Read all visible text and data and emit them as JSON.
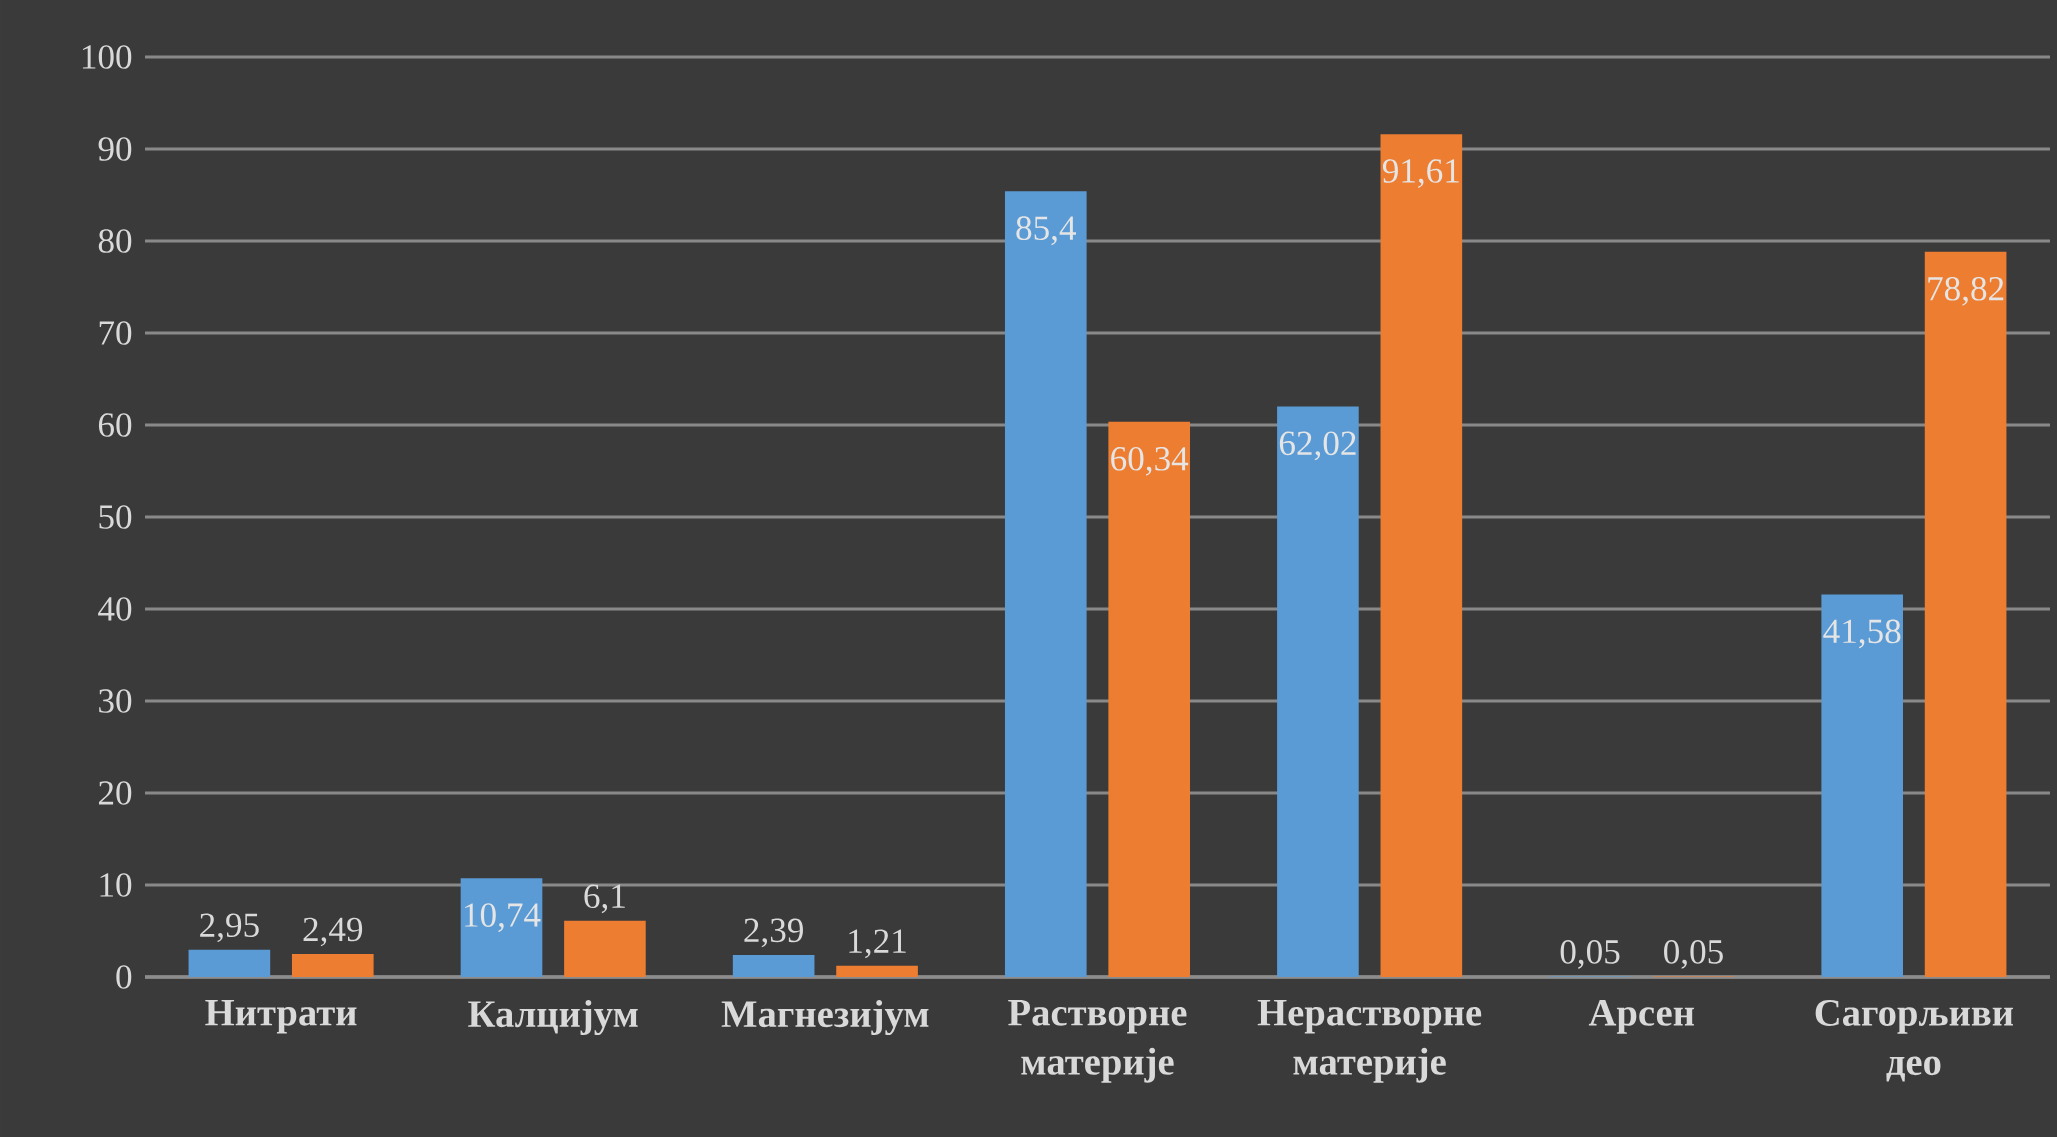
{
  "chart_data": {
    "type": "bar",
    "categories": [
      "Нитрати",
      "Калцијум",
      "Магнезијум",
      "Растворне материје",
      "Нерастворне материје",
      "Арсен",
      "Сагорљиви део"
    ],
    "series": [
      {
        "color": "#5b9bd5",
        "values": [
          2.95,
          10.74,
          2.39,
          85.4,
          62.02,
          0.05,
          41.58
        ],
        "value_labels": [
          "2,95",
          "10,74",
          "2,39",
          "85,4",
          "62,02",
          "0,05",
          "41,58"
        ]
      },
      {
        "color": "#ed7d31",
        "values": [
          2.49,
          6.1,
          1.21,
          60.34,
          91.61,
          0.05,
          78.82
        ],
        "value_labels": [
          "2,49",
          "6,1",
          "1,21",
          "60,34",
          "91,61",
          "0,05",
          "78,82"
        ]
      }
    ],
    "ylim": [
      0,
      100
    ],
    "yticks": [
      0,
      10,
      20,
      30,
      40,
      50,
      60,
      70,
      80,
      90,
      100
    ],
    "grid": "y"
  }
}
